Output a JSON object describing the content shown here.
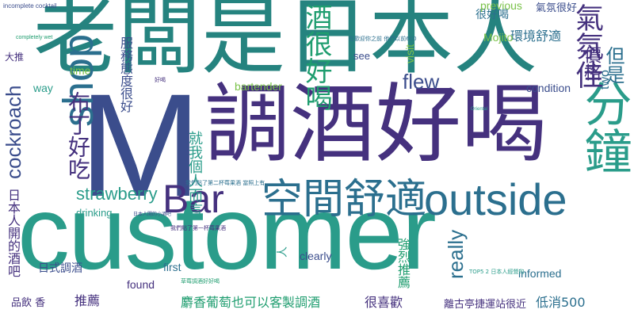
{
  "words": {
    "customer": "customer",
    "m": "M",
    "laoban_ribenren": "老闆是日本人",
    "tiaojiu_haohe": "調酒好喝",
    "kongjian_shushi": "空間舒適",
    "outside": "outside",
    "shop": "shop",
    "bar": "Bar",
    "fenzhong": "分鐘",
    "jiu_henhaohe": "酒很好喝",
    "cockroach": "cockroach",
    "strawberry": "strawberry",
    "flew": "flew",
    "really": "really",
    "buding_haochi": "布丁好吃",
    "qifen_jia": "氣氛佳",
    "jiage": "價格",
    "danshi": "但是",
    "huanjing_shushi": "環境舒適",
    "fuwu_taidu": "服務態度很好",
    "jiu_wo_geren": "就我個人而言",
    "riben_ren_jiuba": "日本人開的酒吧",
    "rishi_tiaojiu": "日式調酒",
    "pinyin_xiang": "品飲 香",
    "tuijian": "推薦",
    "jiaxiang_putao": "麝香葡萄也可以客製調酒",
    "hen_xihuan": "很喜歡",
    "diqiao_500": "低消500",
    "li_guting": "離古亭捷運站很近",
    "qianglie_tuijian": "強烈推薦",
    "dada_tui": "大推",
    "hen_haohe": "很好喝",
    "qifen_henhao": "氣氛很好",
    "mojito": "Mojito",
    "previous": "previous",
    "visit": "visit",
    "see": "see",
    "time": "time",
    "way": "way",
    "bartender": "bartender",
    "condition": "condition",
    "two": "two",
    "drinking": "drinking",
    "first": "first",
    "found": "found",
    "clearly": "clearly",
    "informed": "informed",
    "incomplete_cocktail": "incomplete cocktail",
    "completely_wet": "completely wet",
    "ren": "人",
    "tai_bu_shi": "在歡迎你之前 他們以前600",
    "oriental": "Oriental",
    "haohe_small": "好喝",
    "women_dian": "我們點了第二杯莓果酒 當照上有",
    "women_tui": "我們點了第一杯莓果酒",
    "tai_xiao": "TOP5 2 日本人經營的",
    "ribenren_jiuba2": "日本人開的小酒吧",
    "strawberry_drink": "草莓調酒好好喝"
  },
  "palette": {
    "dark_purple": "#45317e",
    "blue": "#2b6f8e",
    "teal": "#2a9c8a",
    "green": "#1f9d6f",
    "yellow_green": "#7bc24a",
    "indigo": "#3b4d8c"
  }
}
